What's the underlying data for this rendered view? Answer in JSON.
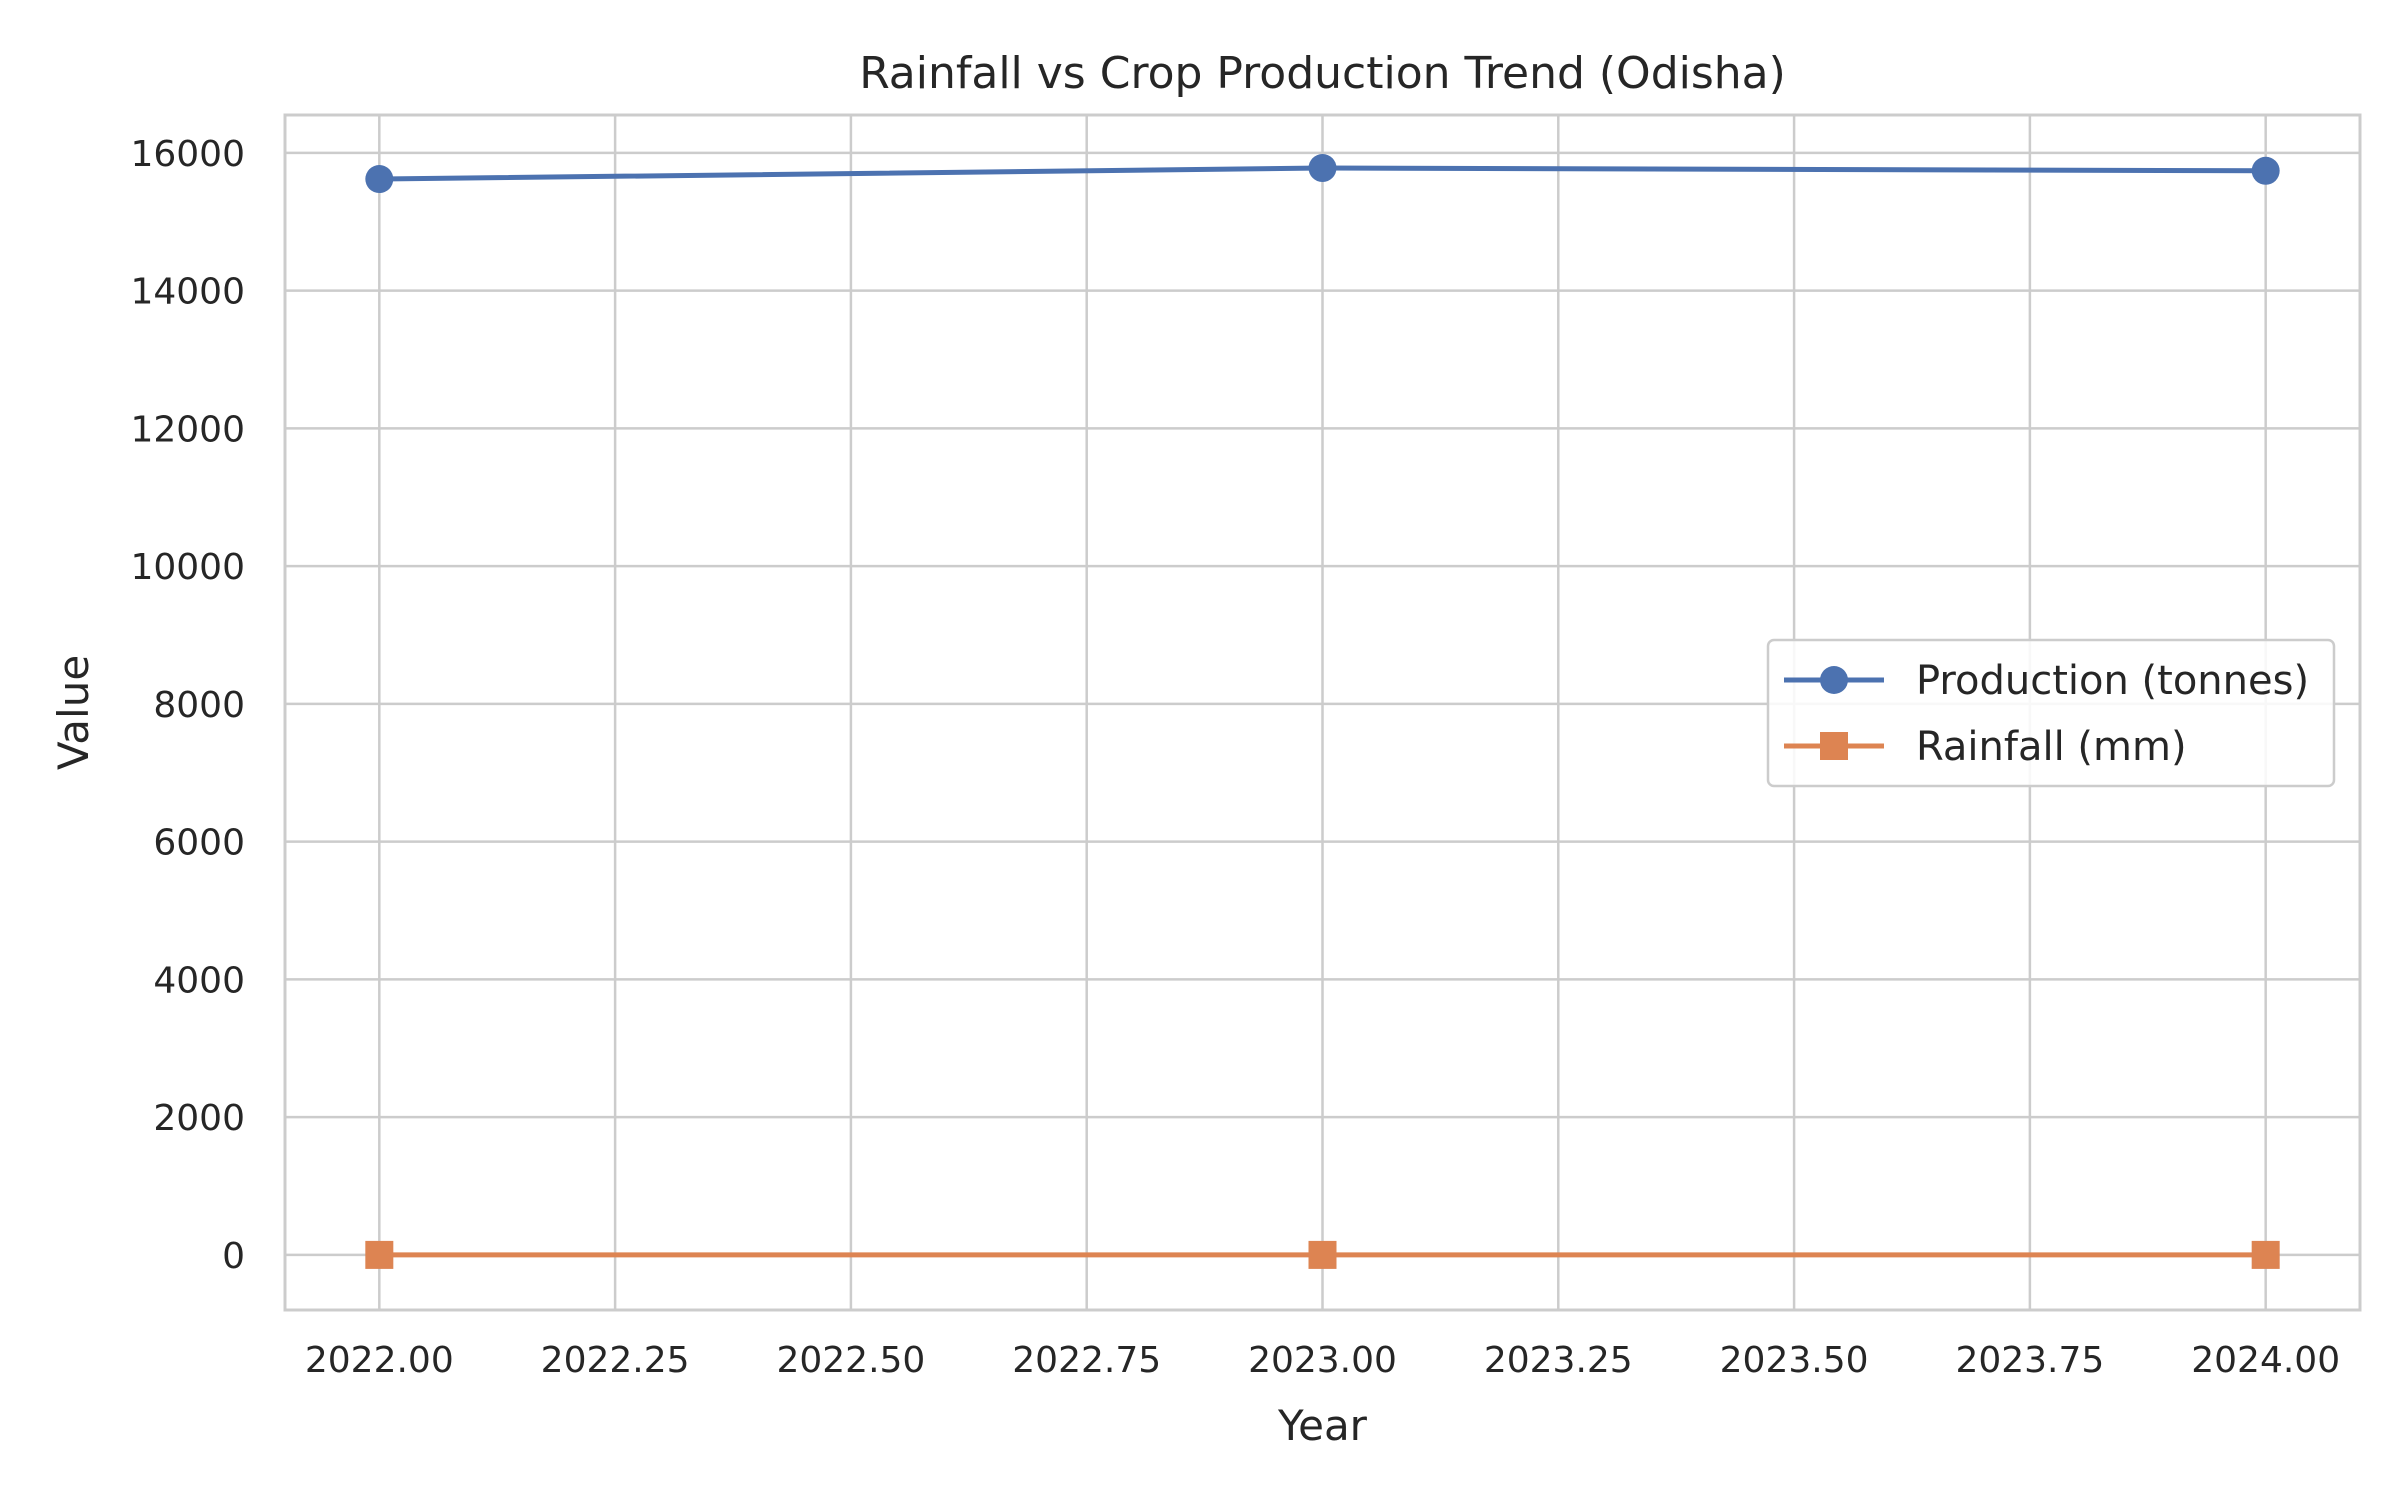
{
  "chart_data": {
    "type": "line",
    "title": "Rainfall vs Crop Production Trend (Odisha)",
    "xlabel": "Year",
    "ylabel": "Value",
    "xlim": [
      2021.9,
      2024.1
    ],
    "ylim": [
      -800,
      16550
    ],
    "x_ticks": [
      2022.0,
      2022.25,
      2022.5,
      2022.75,
      2023.0,
      2023.25,
      2023.5,
      2023.75,
      2024.0
    ],
    "x_tick_labels": [
      "2022.00",
      "2022.25",
      "2022.50",
      "2022.75",
      "2023.00",
      "2023.25",
      "2023.50",
      "2023.75",
      "2024.00"
    ],
    "y_ticks": [
      0,
      2000,
      4000,
      6000,
      8000,
      10000,
      12000,
      14000,
      16000
    ],
    "y_tick_labels": [
      "0",
      "2000",
      "4000",
      "6000",
      "8000",
      "10000",
      "12000",
      "14000",
      "16000"
    ],
    "grid": true,
    "legend_position": "center-right",
    "series": [
      {
        "name": "Production (tonnes)",
        "x": [
          2022,
          2023,
          2024
        ],
        "y": [
          15620,
          15780,
          15740
        ],
        "color": "#4c72b0",
        "marker": "circle"
      },
      {
        "name": "Rainfall (mm)",
        "x": [
          2022,
          2023,
          2024
        ],
        "y": [
          0,
          0,
          0
        ],
        "color": "#dd8452",
        "marker": "square"
      }
    ]
  }
}
